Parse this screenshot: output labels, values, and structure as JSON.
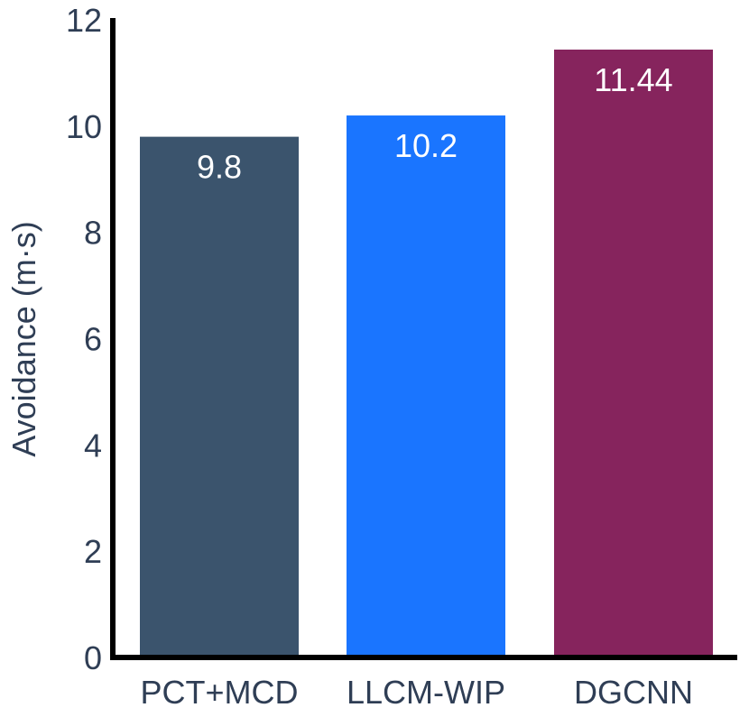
{
  "chart_data": {
    "type": "bar",
    "title": "",
    "xlabel": "",
    "ylabel": "Avoidance (m·s)",
    "ylim": [
      0,
      12
    ],
    "yticks": [
      0,
      2,
      4,
      6,
      8,
      10,
      12
    ],
    "grid": false,
    "legend": "none",
    "categories": [
      "PCT+MCD",
      "LLCM-WIP",
      "DGCNN"
    ],
    "values": [
      9.8,
      10.2,
      11.44
    ],
    "data_labels": [
      "9.8",
      "10.2",
      "11.44"
    ],
    "colors": [
      "#3b546d",
      "#1a75ff",
      "#86245d"
    ],
    "text_color": "#2f3e55",
    "axis_color": "#000000"
  }
}
